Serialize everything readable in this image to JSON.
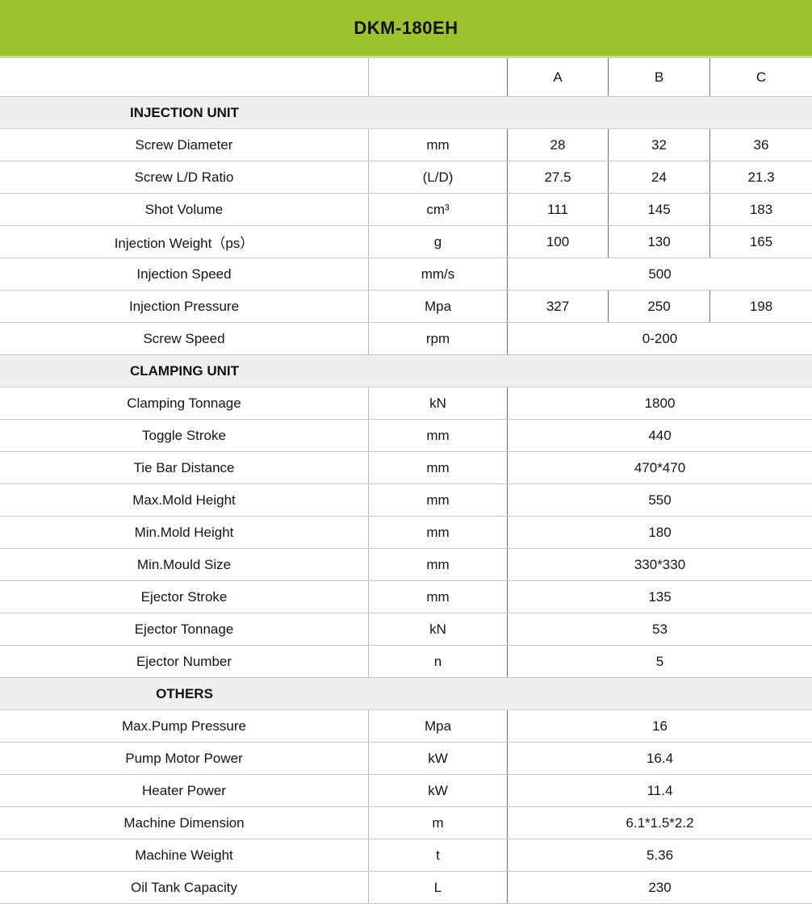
{
  "title": "DKM-180EH",
  "columns": [
    "A",
    "B",
    "C"
  ],
  "sections": [
    {
      "name": "INJECTION UNIT",
      "rows": [
        {
          "label": "Screw Diameter",
          "unit": "mm",
          "values": [
            "28",
            "32",
            "36"
          ]
        },
        {
          "label": "Screw L/D Ratio",
          "unit": "(L/D)",
          "values": [
            "27.5",
            "24",
            "21.3"
          ]
        },
        {
          "label": "Shot Volume",
          "unit": "cm³",
          "values": [
            "111",
            "145",
            "183"
          ]
        },
        {
          "label": "Injection Weight（ps）",
          "unit": "g",
          "values": [
            "100",
            "130",
            "165"
          ]
        },
        {
          "label": "Injection Speed",
          "unit": "mm/s",
          "span": "500"
        },
        {
          "label": "Injection Pressure",
          "unit": "Mpa",
          "values": [
            "327",
            "250",
            "198"
          ]
        },
        {
          "label": "Screw Speed",
          "unit": "rpm",
          "span": "0-200"
        }
      ]
    },
    {
      "name": "CLAMPING UNIT",
      "rows": [
        {
          "label": "Clamping Tonnage",
          "unit": "kN",
          "span": "1800"
        },
        {
          "label": "Toggle Stroke",
          "unit": "mm",
          "span": "440"
        },
        {
          "label": "Tie Bar Distance",
          "unit": "mm",
          "span": "470*470"
        },
        {
          "label": "Max.Mold Height",
          "unit": "mm",
          "span": "550"
        },
        {
          "label": "Min.Mold Height",
          "unit": "mm",
          "span": "180"
        },
        {
          "label": "Min.Mould Size",
          "unit": "mm",
          "span": "330*330"
        },
        {
          "label": "Ejector Stroke",
          "unit": "mm",
          "span": "135"
        },
        {
          "label": "Ejector Tonnage",
          "unit": "kN",
          "span": "53"
        },
        {
          "label": "Ejector Number",
          "unit": "n",
          "span": "5"
        }
      ]
    },
    {
      "name": "OTHERS",
      "rows": [
        {
          "label": "Max.Pump Pressure",
          "unit": "Mpa",
          "span": "16"
        },
        {
          "label": "Pump Motor Power",
          "unit": "kW",
          "span": "16.4"
        },
        {
          "label": "Heater Power",
          "unit": "kW",
          "span": "11.4"
        },
        {
          "label": "Machine Dimension",
          "unit": "m",
          "span": "6.1*1.5*2.2"
        },
        {
          "label": "Machine Weight",
          "unit": "t",
          "span": "5.36"
        },
        {
          "label": "Oil Tank Capacity",
          "unit": "L",
          "span": "230"
        }
      ]
    }
  ],
  "colors": {
    "header_green": "#9CC32B",
    "header_green_light": "#C9DD84",
    "section_bg": "#EFEFEF",
    "border_horizontal": "#C6C6C6",
    "border_vertical": "#707070",
    "border_vertical_light": "#B5B5B5"
  }
}
